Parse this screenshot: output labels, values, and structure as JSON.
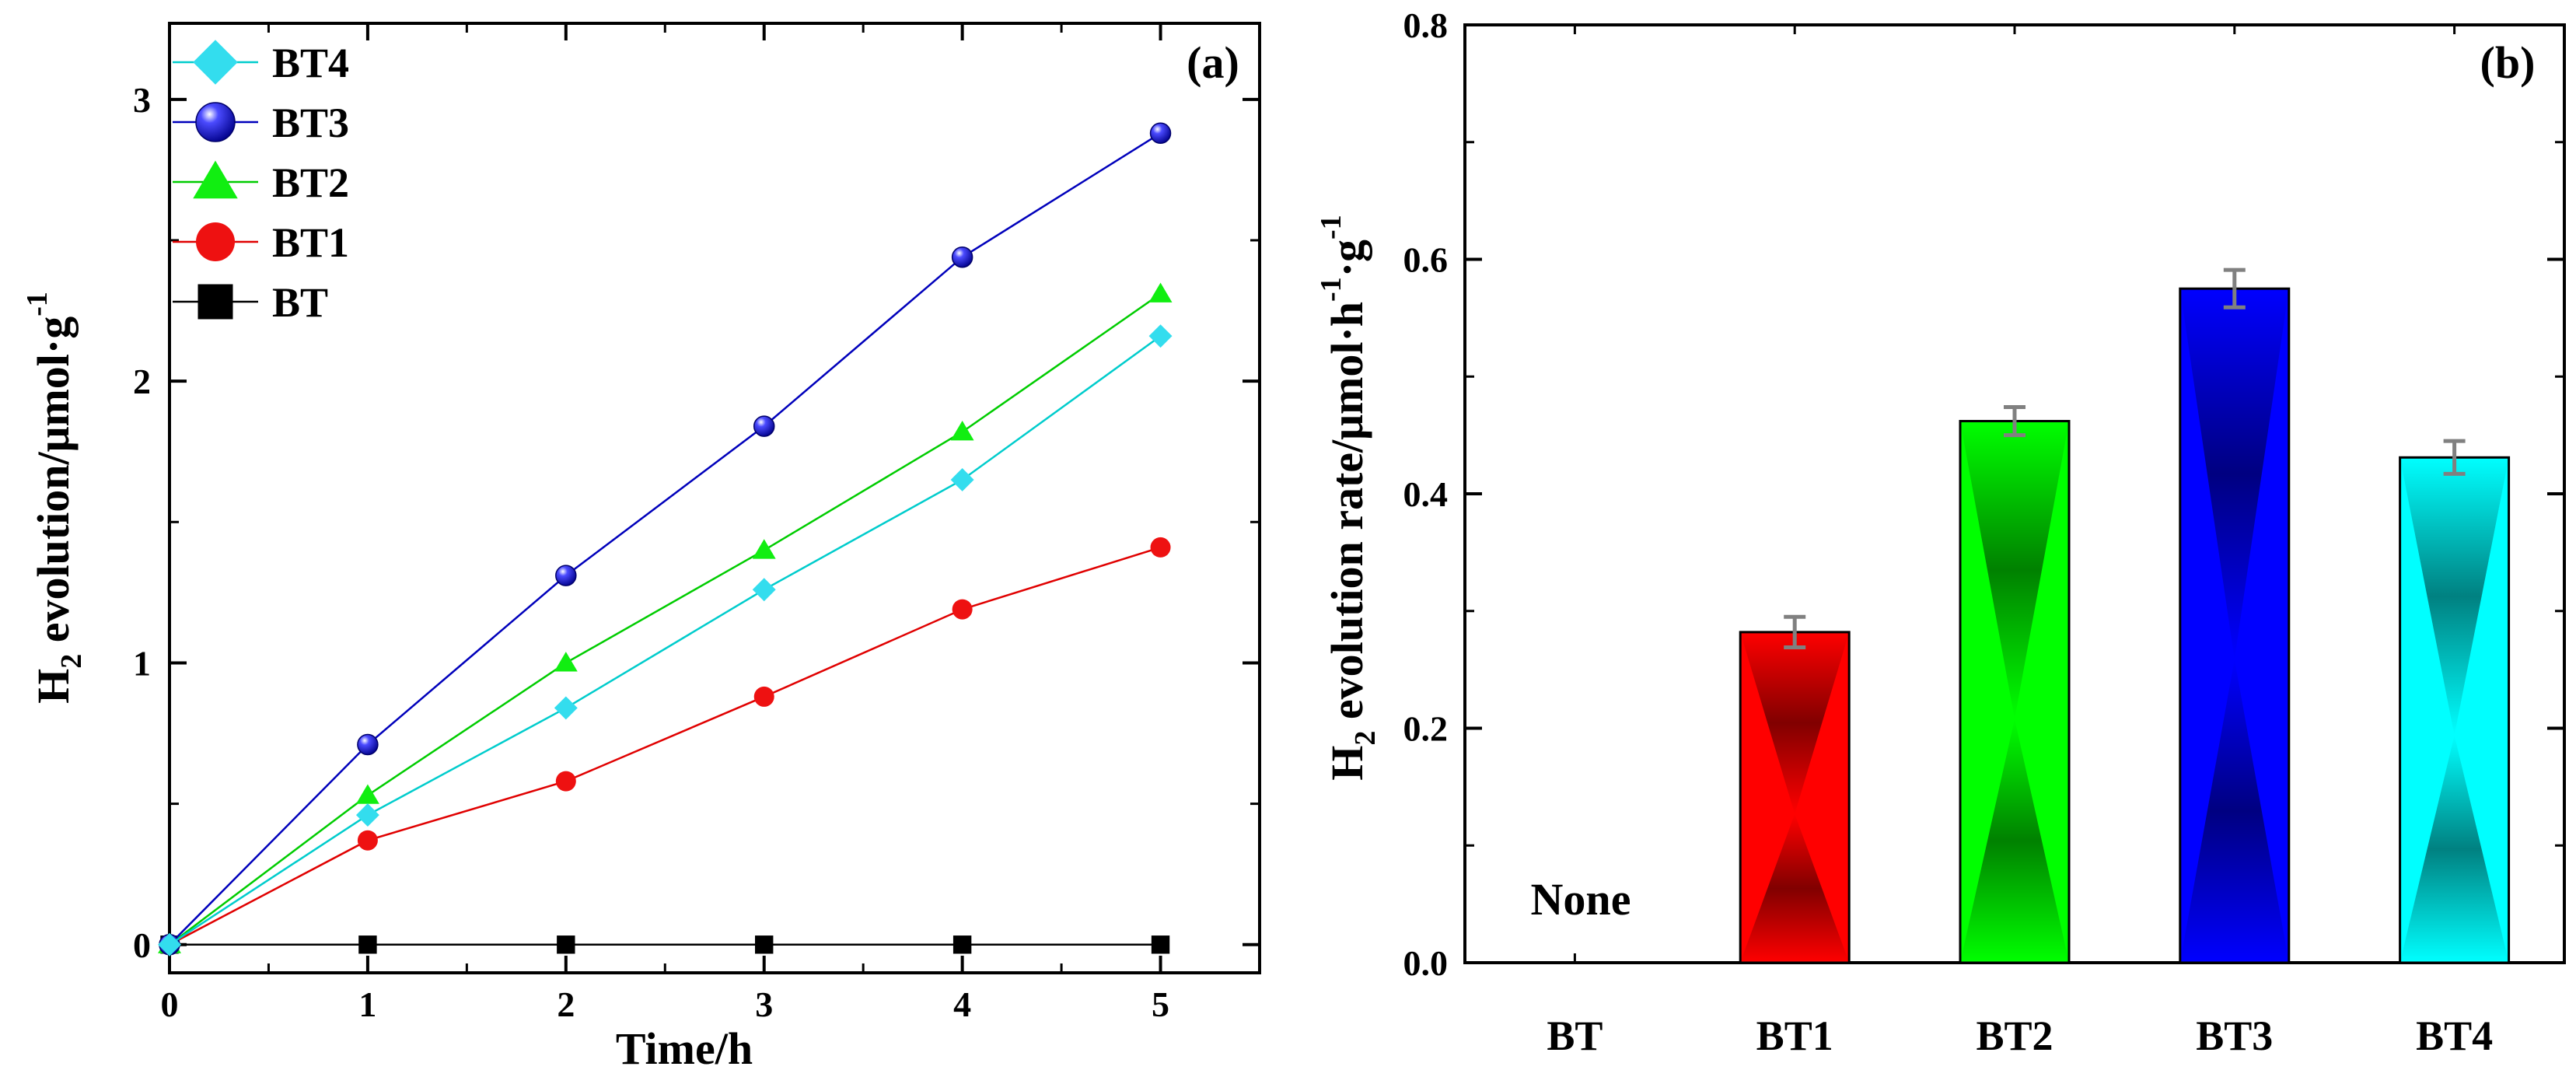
{
  "chart_data": [
    {
      "type": "line",
      "panel_label": "(a)",
      "xlabel": "Time/h",
      "ylabel": "H",
      "ylabel_sub": "2",
      "ylabel_rest": " evolution/μmol·g",
      "ylabel_sup": "-1",
      "xlim": [
        0,
        5.5
      ],
      "ylim": [
        -0.1,
        3.27
      ],
      "xticks": [
        0,
        1,
        2,
        3,
        4,
        5
      ],
      "yticks": [
        0,
        1,
        2,
        3
      ],
      "xtick_labels": [
        "0",
        "1",
        "2",
        "3",
        "4",
        "5"
      ],
      "ytick_labels": [
        "0",
        "1",
        "2",
        "3"
      ],
      "legend_placement": "top-left",
      "x": [
        0,
        1,
        2,
        3,
        4,
        5
      ],
      "series": [
        {
          "name": "BT4",
          "marker": "diamond",
          "color": "#33ddee",
          "stroke": "#00cccc",
          "values": [
            0,
            0.46,
            0.84,
            1.26,
            1.65,
            2.16
          ]
        },
        {
          "name": "BT3",
          "marker": "sphere",
          "color": "#1a1ad0",
          "stroke": "#0000bb",
          "values": [
            0,
            0.71,
            1.31,
            1.84,
            2.44,
            2.88
          ]
        },
        {
          "name": "BT2",
          "marker": "triangle",
          "color": "#11ee11",
          "stroke": "#00cc00",
          "values": [
            0,
            0.53,
            1.0,
            1.4,
            1.82,
            2.31
          ]
        },
        {
          "name": "BT1",
          "marker": "circle",
          "color": "#ee1111",
          "stroke": "#e00000",
          "values": [
            0,
            0.37,
            0.58,
            0.88,
            1.19,
            1.41
          ]
        },
        {
          "name": "BT",
          "marker": "square",
          "color": "#000000",
          "stroke": "#000000",
          "values": [
            0,
            0,
            0,
            0,
            0,
            0
          ]
        }
      ]
    },
    {
      "type": "bar",
      "panel_label": "(b)",
      "ylabel": "H",
      "ylabel_sub": "2",
      "ylabel_rest": " evolution rate/μmol·h",
      "ylabel_sup1": "-1",
      "ylabel_mid": "·g",
      "ylabel_sup2": "-1",
      "ylim": [
        0,
        0.8
      ],
      "yticks": [
        0.0,
        0.2,
        0.4,
        0.6,
        0.8
      ],
      "ytick_labels": [
        "0.0",
        "0.2",
        "0.4",
        "0.6",
        "0.8"
      ],
      "categories": [
        "BT",
        "BT1",
        "BT2",
        "BT3",
        "BT4"
      ],
      "values": [
        0,
        0.282,
        0.462,
        0.575,
        0.431
      ],
      "errors": [
        0,
        0.013,
        0.012,
        0.016,
        0.014
      ],
      "colors": [
        "#ffffff",
        "#ff0000",
        "#00ff00",
        "#0000ff",
        "#00ffff"
      ],
      "annotation": "None"
    }
  ]
}
